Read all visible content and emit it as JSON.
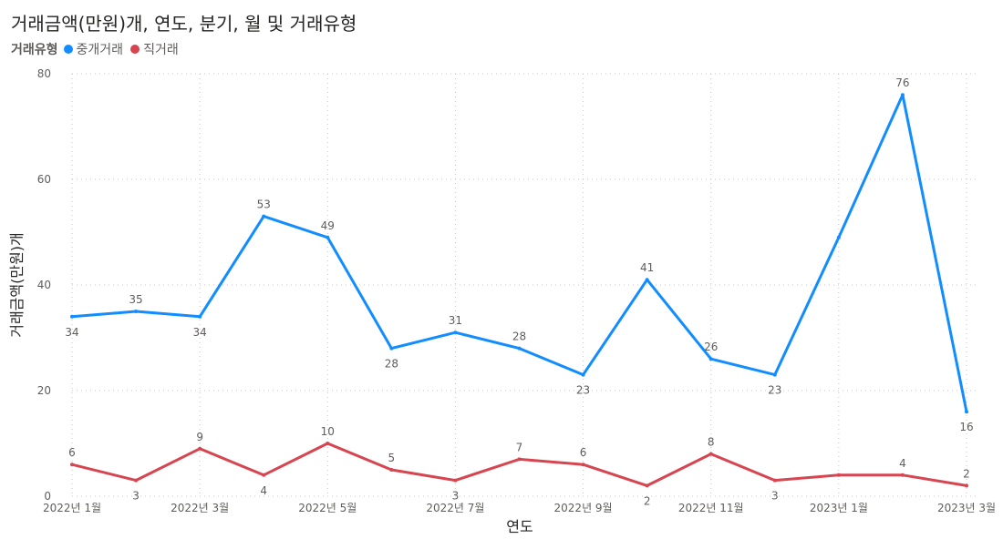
{
  "chart_data": {
    "type": "line",
    "title": "거래금액(만원)개, 연도, 분기, 월 및 거래유형",
    "xlabel": "연도",
    "ylabel": "거래금액(만원)개",
    "ylim": [
      0,
      80
    ],
    "yticks": [
      0,
      20,
      40,
      60,
      80
    ],
    "grid": true,
    "legend_title": "거래유형",
    "legend_position": "top-left",
    "x": [
      "2022-01",
      "2022-02",
      "2022-03",
      "2022-04",
      "2022-05",
      "2022-06",
      "2022-07",
      "2022-08",
      "2022-09",
      "2022-10",
      "2022-11",
      "2022-12",
      "2023-01",
      "2023-02",
      "2023-03"
    ],
    "x_tick_labels": [
      "2022년 1월",
      "2022년 3월",
      "2022년 5월",
      "2022년 7월",
      "2022년 9월",
      "2022년 11월",
      "2023년 1월",
      "2023년 3월"
    ],
    "series": [
      {
        "name": "중개거래",
        "color": "#118DFF",
        "values": [
          34,
          35,
          34,
          53,
          49,
          28,
          31,
          28,
          23,
          41,
          26,
          23,
          49,
          76,
          16
        ],
        "labels": [
          "34",
          "35",
          "34",
          "53",
          "49",
          "28",
          "31",
          "28",
          "23",
          "41",
          "26",
          "23",
          "",
          "76",
          "16"
        ]
      },
      {
        "name": "직거래",
        "color": "#D64550",
        "values": [
          6,
          3,
          9,
          4,
          10,
          5,
          3,
          7,
          6,
          2,
          8,
          3,
          4,
          4,
          2
        ],
        "labels": [
          "6",
          "3",
          "9",
          "4",
          "10",
          "5",
          "3",
          "7",
          "6",
          "2",
          "8",
          "3",
          "",
          "4",
          "2"
        ]
      }
    ]
  }
}
